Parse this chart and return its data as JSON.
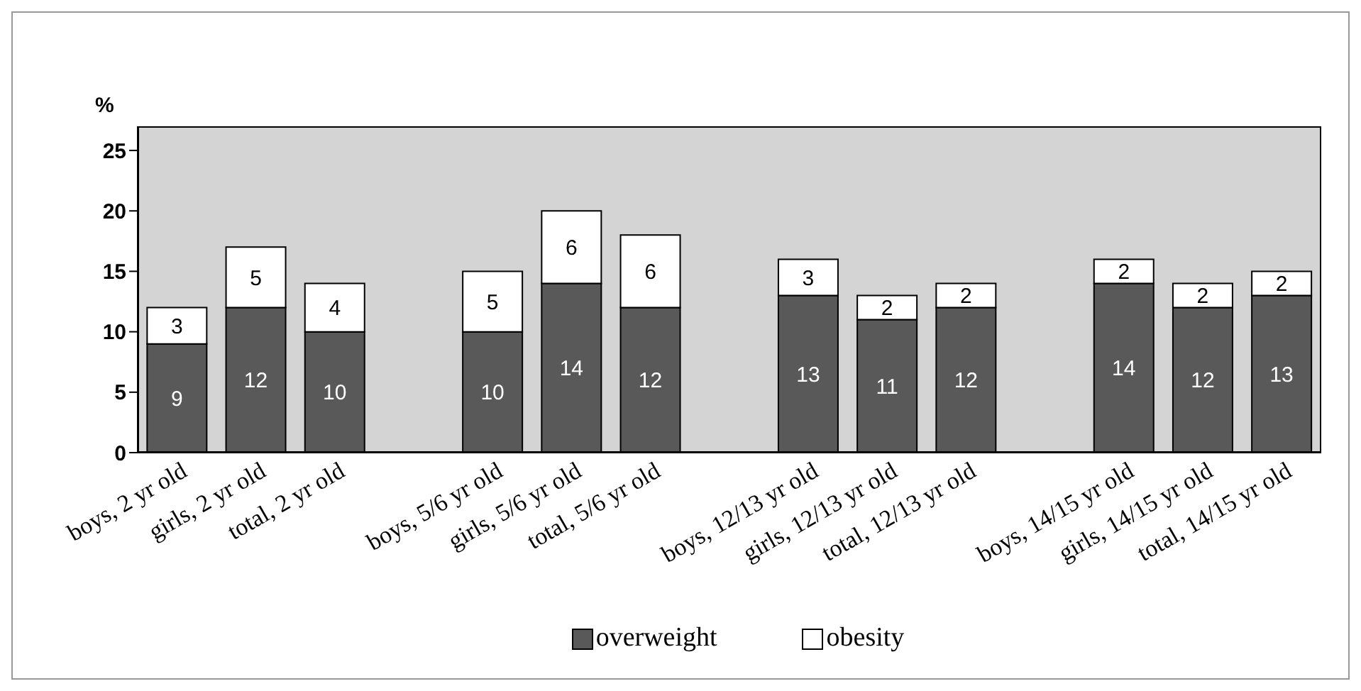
{
  "chart_data": {
    "type": "bar",
    "stacked": true,
    "ylabel": "%",
    "categories": [
      "boys, 2 yr old",
      "girls, 2 yr old",
      "total, 2 yr old",
      null,
      "boys, 5/6 yr old",
      "girls, 5/6 yr old",
      "total, 5/6 yr old",
      null,
      "boys, 12/13 yr old",
      "girls, 12/13 yr old",
      "total, 12/13 yr old",
      null,
      "boys, 14/15 yr old",
      "girls, 14/15 yr old",
      "total, 14/15 yr old"
    ],
    "series": [
      {
        "name": "overweight",
        "color": "#595959",
        "values": [
          9,
          12,
          10,
          null,
          10,
          14,
          12,
          null,
          13,
          11,
          12,
          null,
          14,
          12,
          13
        ]
      },
      {
        "name": "obesity",
        "color": "#ffffff",
        "values": [
          3,
          5,
          4,
          null,
          5,
          6,
          6,
          null,
          3,
          2,
          2,
          null,
          2,
          2,
          2
        ]
      }
    ],
    "ylim": [
      0,
      27
    ],
    "yticks": [
      0,
      5,
      10,
      15,
      20,
      25
    ],
    "grid": false,
    "legend": "bottom",
    "data_labels": true
  }
}
